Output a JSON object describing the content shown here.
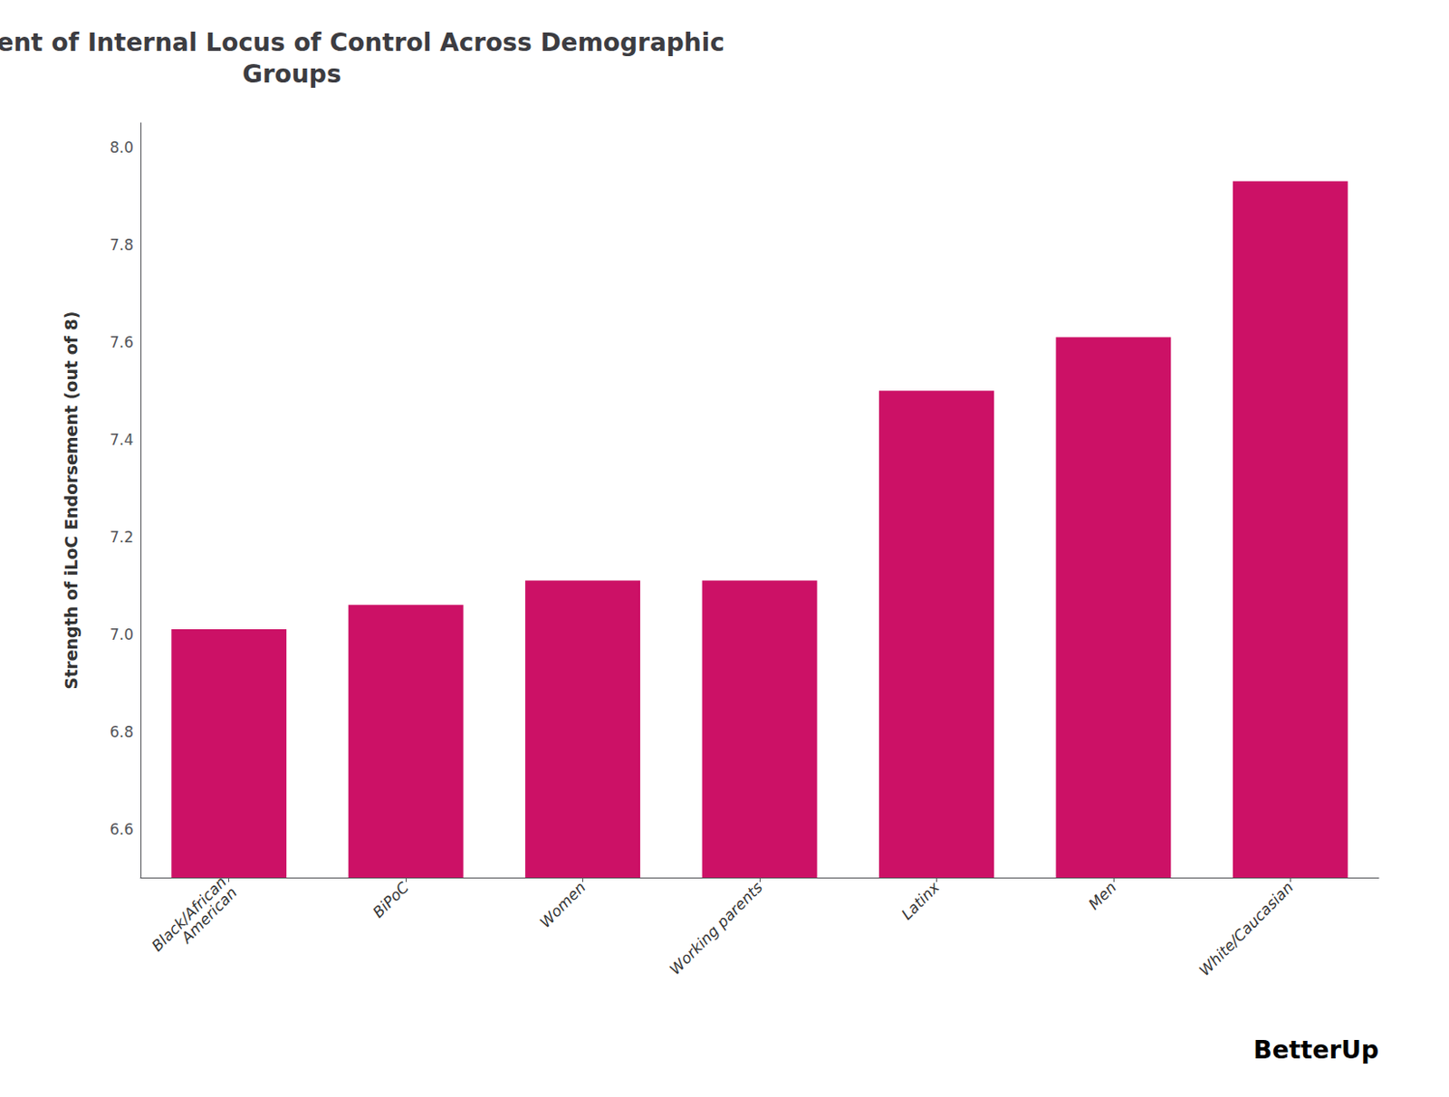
{
  "chart_data": {
    "type": "bar",
    "title": "Endorsement of Internal Locus of Control Across Demographic\nGroups",
    "ylabel": "Strength of iLoC Endorsement (out of 8)",
    "categories": [
      "Black/African\nAmerican",
      "BiPoC",
      "Women",
      "Working parents",
      "Latinx",
      "Men",
      "White/Caucasian"
    ],
    "values": [
      7.01,
      7.06,
      7.11,
      7.11,
      7.5,
      7.61,
      7.93
    ],
    "color": "#CC1166",
    "ylim": [
      6.5,
      8.05
    ],
    "yticks": [
      6.6,
      6.8,
      {
        "value": 7.0,
        "label": "7.0"
      },
      7.2,
      7.4,
      7.6,
      7.8,
      {
        "value": 8.0,
        "label": "8.0"
      }
    ],
    "grid": false,
    "annotation": "BetterUp"
  }
}
